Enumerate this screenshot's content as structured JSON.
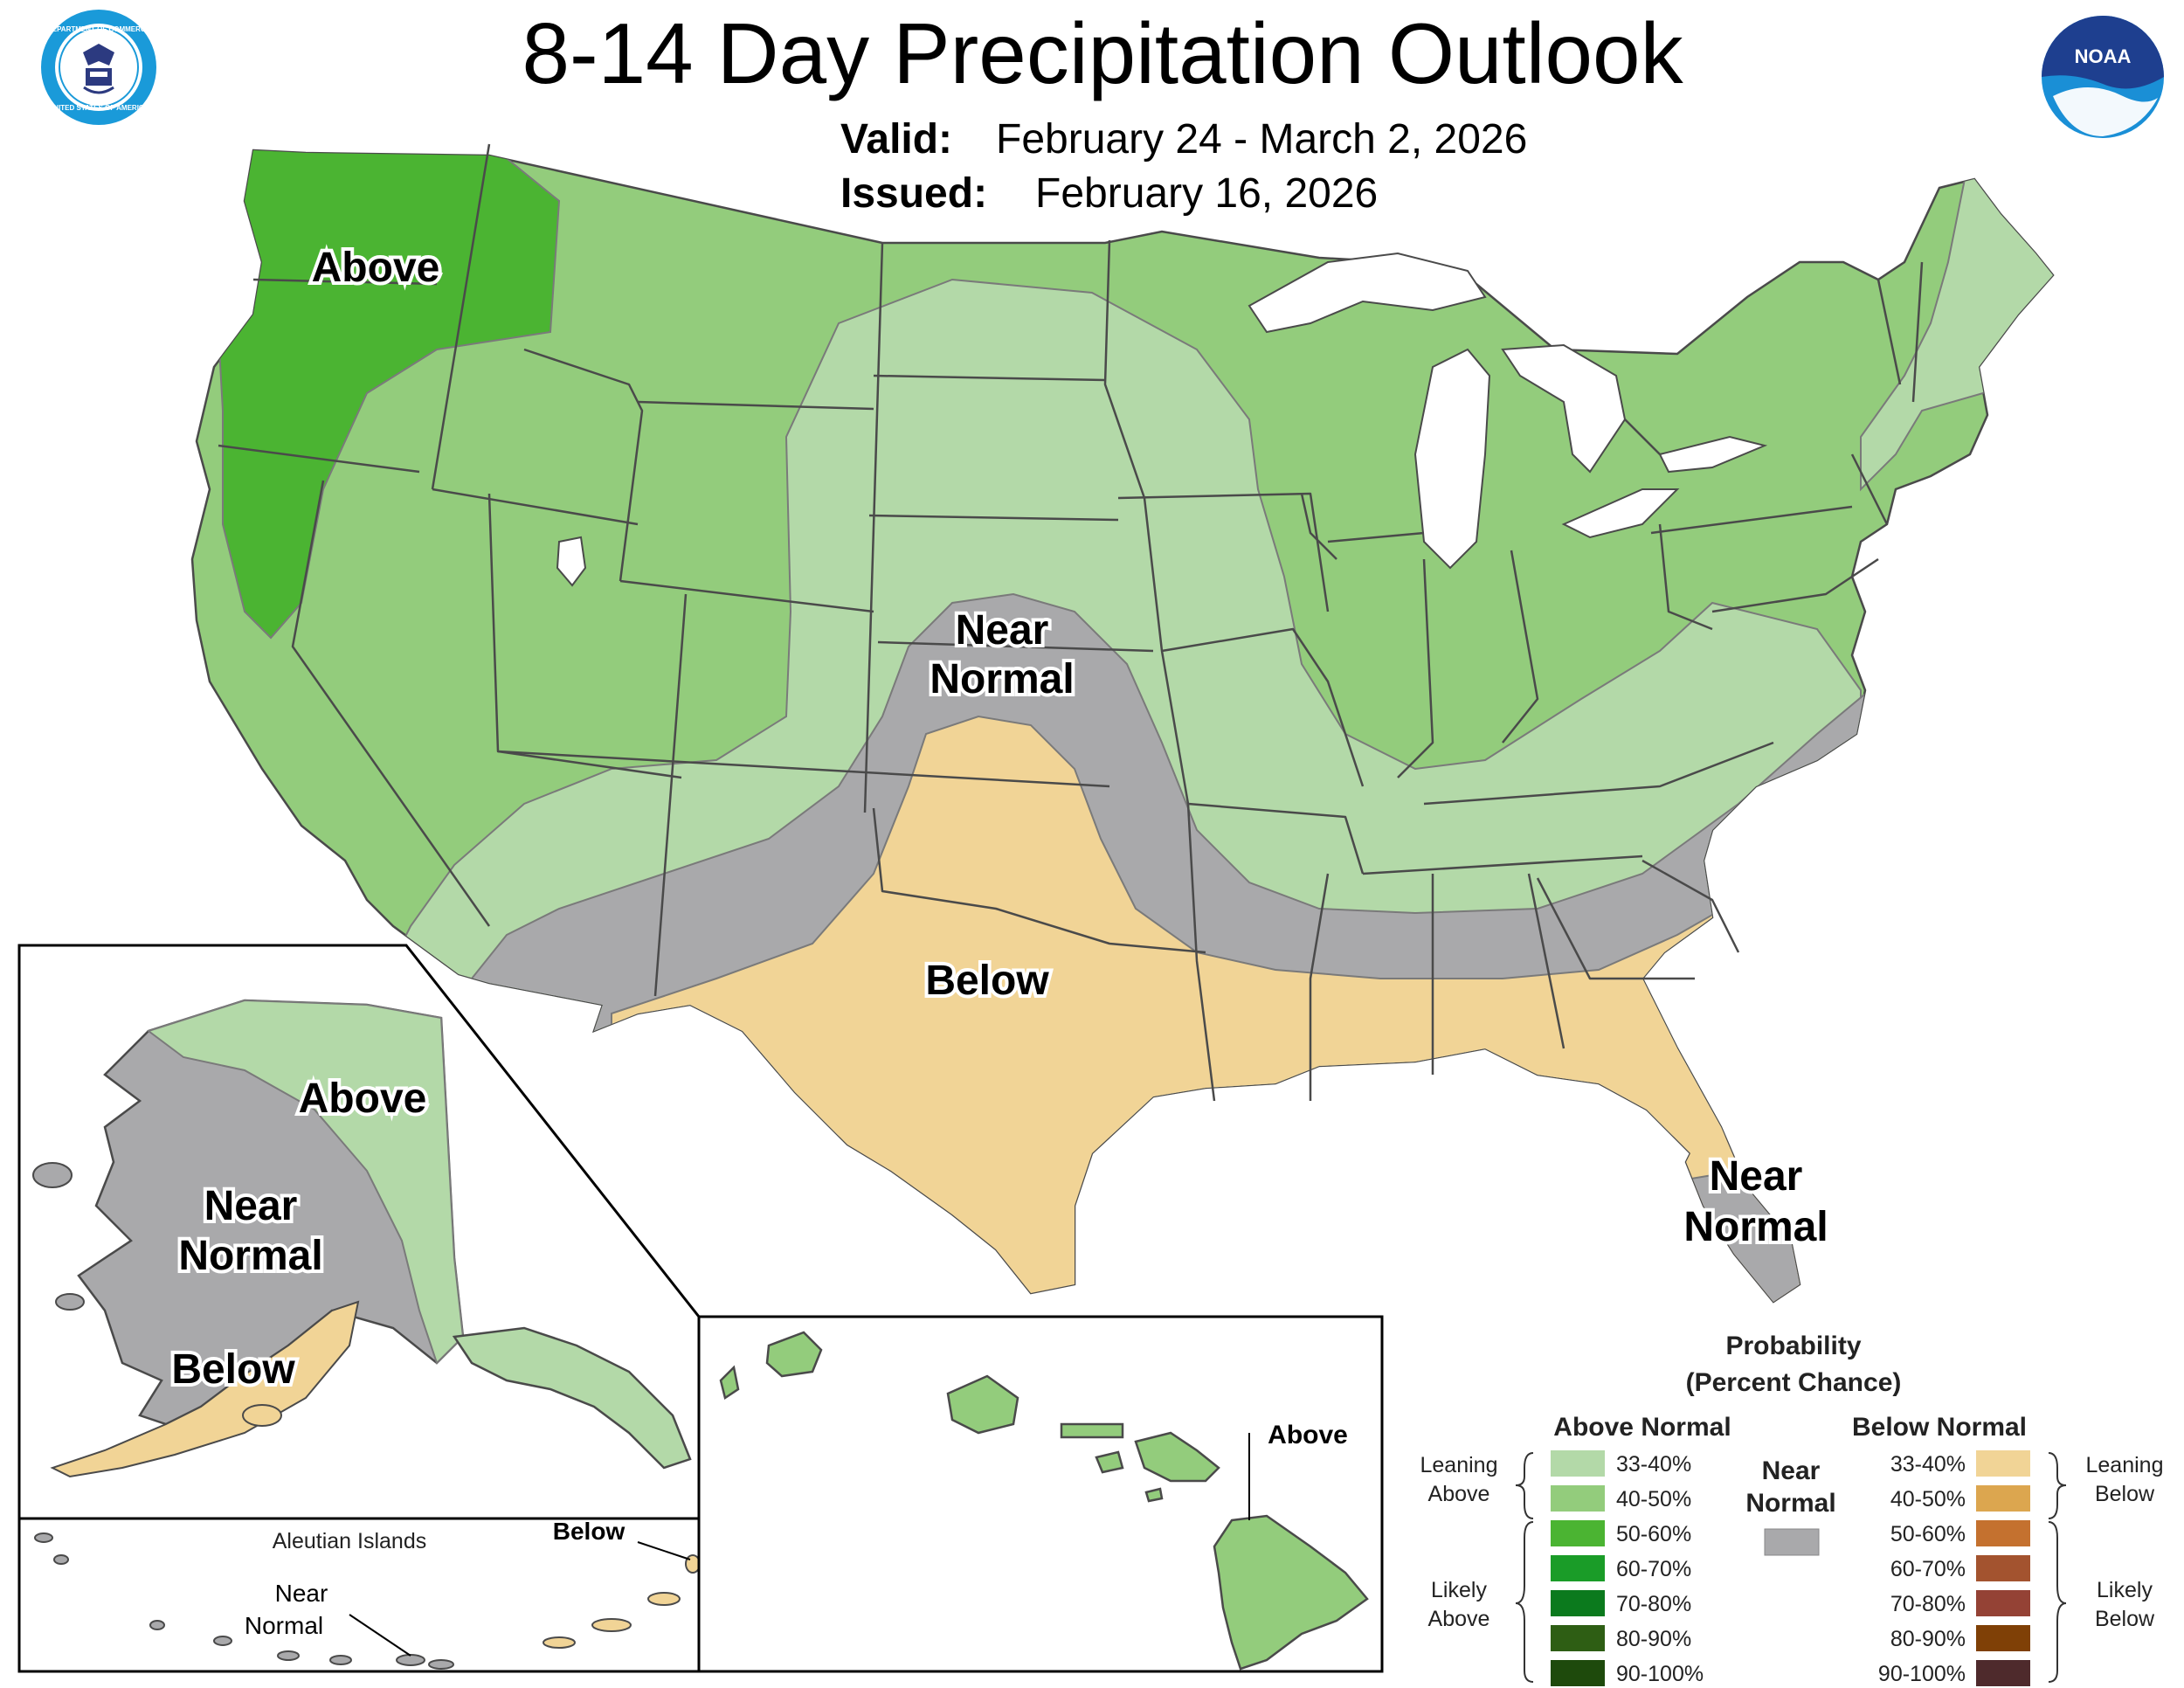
{
  "header": {
    "title": "8-14 Day Precipitation Outlook",
    "valid_label": "Valid:",
    "valid_value": "February 24 - March 2, 2026",
    "issued_label": "Issued:",
    "issued_value": "February 16, 2026"
  },
  "logos": {
    "commerce_icon": "department-of-commerce-seal",
    "commerce_text_top": "DEPARTMENT OF COMMERCE",
    "commerce_text_bottom": "UNITED STATES OF AMERICA",
    "noaa_icon": "noaa-logo",
    "noaa_text": "NOAA"
  },
  "colors": {
    "above_33_40": "#b3d9a8",
    "above_40_50": "#93cc7c",
    "above_50_60": "#4bb432",
    "above_60_70": "#1a9c28",
    "above_70_80": "#0b7a1d",
    "above_80_90": "#2e5e14",
    "above_90_100": "#1e4a0c",
    "near_normal": "#a9a9ab",
    "below_33_40": "#f1d496",
    "below_40_50": "#dca64f",
    "below_50_60": "#c4712f",
    "below_60_70": "#a3532f",
    "below_70_80": "#944235",
    "below_80_90": "#7f4006",
    "below_90_100": "#4e2a2c"
  },
  "map": {
    "conus_labels": {
      "above": "Above",
      "near_normal_line1": "Near",
      "near_normal_line2": "Normal",
      "below": "Below",
      "florida_near_line1": "Near",
      "florida_near_line2": "Normal"
    },
    "alaska_labels": {
      "above": "Above",
      "near_line1": "Near",
      "near_line2": "Normal",
      "below": "Below"
    },
    "aleutian_labels": {
      "title": "Aleutian Islands",
      "below": "Below",
      "near_line1": "Near",
      "near_line2": "Normal"
    },
    "hawaii_labels": {
      "above": "Above"
    }
  },
  "legend": {
    "title_line1": "Probability",
    "title_line2": "(Percent Chance)",
    "above_header": "Above Normal",
    "below_header": "Below Normal",
    "near_line1": "Near",
    "near_line2": "Normal",
    "leaning_above_line1": "Leaning",
    "leaning_above_line2": "Above",
    "likely_above_line1": "Likely",
    "likely_above_line2": "Above",
    "leaning_below_line1": "Leaning",
    "leaning_below_line2": "Below",
    "likely_below_line1": "Likely",
    "likely_below_line2": "Below",
    "ranges": [
      "33-40%",
      "40-50%",
      "50-60%",
      "60-70%",
      "70-80%",
      "80-90%",
      "90-100%"
    ]
  }
}
